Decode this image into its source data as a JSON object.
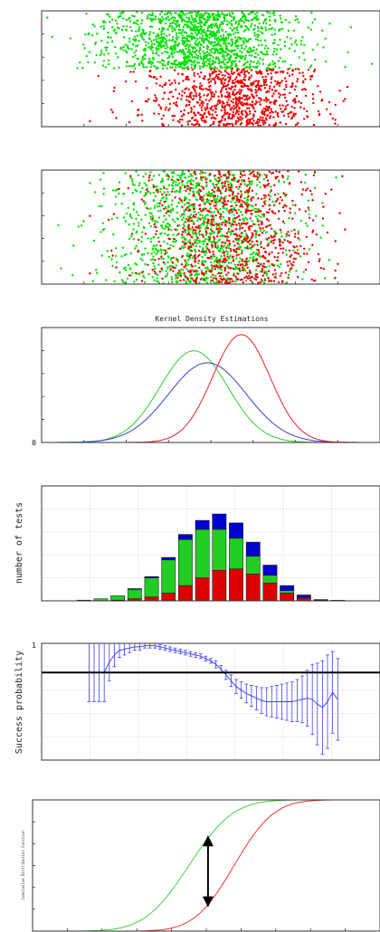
{
  "chart_data": [
    {
      "id": "scatter-separated",
      "type": "scatter",
      "xlim": [
        -5,
        5
      ],
      "ylim": [
        0,
        1
      ],
      "grid": false,
      "series": [
        {
          "color": "#00e000",
          "x_range": [
            -2.5,
            1.8
          ],
          "y_range": [
            0.5,
            1.0
          ],
          "count": 1400
        },
        {
          "color": "#ee0000",
          "x_range": [
            -1.2,
            2.6
          ],
          "y_range": [
            0.0,
            0.5
          ],
          "count": 900
        }
      ]
    },
    {
      "id": "scatter-mixed",
      "type": "scatter",
      "xlim": [
        -5,
        5
      ],
      "ylim": [
        0,
        1
      ],
      "grid": false,
      "series": [
        {
          "color": "#00e000",
          "x_range": [
            -2.5,
            1.8
          ],
          "y_range": [
            0.0,
            1.0
          ],
          "count": 1200
        },
        {
          "color": "#ee0000",
          "x_range": [
            -1.2,
            2.6
          ],
          "y_range": [
            0.0,
            1.0
          ],
          "count": 900
        }
      ]
    },
    {
      "id": "kde",
      "type": "line",
      "title": "Kernel Density Estimations",
      "xlim": [
        -5,
        5
      ],
      "ylim": [
        0,
        0.5
      ],
      "ytick_labels": [
        "0"
      ],
      "series": [
        {
          "color": "#33cc33",
          "mean": -0.5,
          "sd": 1.0
        },
        {
          "color": "#3344cc",
          "mean": -0.1,
          "sd": 1.15
        },
        {
          "color": "#ee2222",
          "mean": 0.9,
          "sd": 0.85
        }
      ]
    },
    {
      "id": "histogram",
      "type": "bar",
      "ylabel": "number of tests",
      "xlim": [
        -5,
        5
      ],
      "ylim": [
        0,
        450
      ],
      "grid": true,
      "x": [
        -3.75,
        -3.25,
        -2.75,
        -2.25,
        -1.75,
        -1.25,
        -0.75,
        -0.25,
        0.25,
        0.75,
        1.25,
        1.75,
        2.25,
        2.75,
        3.25,
        3.75
      ],
      "series": [
        {
          "name": "red",
          "color": "#dd0000",
          "values": [
            0,
            1,
            3,
            8,
            15,
            30,
            60,
            90,
            120,
            125,
            105,
            70,
            30,
            10,
            2,
            1
          ]
        },
        {
          "name": "green",
          "color": "#22cc22",
          "values": [
            3,
            7,
            17,
            37,
            75,
            130,
            180,
            190,
            160,
            120,
            70,
            30,
            10,
            3,
            1,
            0
          ]
        },
        {
          "name": "blue",
          "color": "#0000cc",
          "values": [
            0,
            0,
            0,
            3,
            5,
            10,
            20,
            35,
            60,
            60,
            55,
            40,
            20,
            10,
            2,
            1
          ]
        }
      ]
    },
    {
      "id": "success-probability",
      "type": "line",
      "ylabel": "Success probability",
      "xlim": [
        -5,
        5
      ],
      "ylim": [
        0,
        1
      ],
      "ytick_labels": [
        "1"
      ],
      "threshold": 0.75,
      "series": [
        {
          "color": "#4444ee",
          "x": [
            -3.6,
            -3.45,
            -3.3,
            -3.15,
            -3.0,
            -2.85,
            -2.7,
            -2.55,
            -2.4,
            -2.25,
            -2.1,
            -1.95,
            -1.8,
            -1.65,
            -1.5,
            -1.35,
            -1.2,
            -1.05,
            -0.9,
            -0.75,
            -0.6,
            -0.45,
            -0.3,
            -0.15,
            0.0,
            0.15,
            0.3,
            0.45,
            0.6,
            0.75,
            0.9,
            1.05,
            1.2,
            1.35,
            1.5,
            1.65,
            1.8,
            1.95,
            2.1,
            2.25,
            2.4,
            2.55,
            2.7,
            2.85,
            3.0,
            3.15,
            3.3,
            3.45,
            3.6,
            3.75
          ],
          "y": [
            0.75,
            0.75,
            0.75,
            0.75,
            0.84,
            0.9,
            0.94,
            0.95,
            0.96,
            0.97,
            0.97,
            0.98,
            0.98,
            0.98,
            0.97,
            0.96,
            0.95,
            0.94,
            0.93,
            0.92,
            0.91,
            0.9,
            0.89,
            0.87,
            0.85,
            0.82,
            0.78,
            0.73,
            0.68,
            0.63,
            0.6,
            0.57,
            0.55,
            0.53,
            0.51,
            0.5,
            0.5,
            0.5,
            0.5,
            0.5,
            0.5,
            0.51,
            0.52,
            0.53,
            0.52,
            0.48,
            0.45,
            0.5,
            0.58,
            0.52
          ],
          "err": [
            0.25,
            0.25,
            0.25,
            0.25,
            0.16,
            0.1,
            0.06,
            0.05,
            0.04,
            0.03,
            0.03,
            0.02,
            0.02,
            0.02,
            0.02,
            0.02,
            0.02,
            0.02,
            0.02,
            0.02,
            0.02,
            0.02,
            0.02,
            0.02,
            0.02,
            0.03,
            0.03,
            0.04,
            0.05,
            0.06,
            0.07,
            0.08,
            0.09,
            0.1,
            0.11,
            0.12,
            0.13,
            0.14,
            0.15,
            0.16,
            0.17,
            0.18,
            0.2,
            0.24,
            0.3,
            0.35,
            0.4,
            0.4,
            0.35,
            0.35
          ]
        }
      ]
    },
    {
      "id": "cdf",
      "type": "line",
      "ylabel": "Cumulative Distribution Function",
      "xlim": [
        -5,
        5
      ],
      "ylim": [
        0,
        1
      ],
      "arrow_x": 0.05,
      "series": [
        {
          "color": "#33cc33",
          "mean": -0.5,
          "sd": 1.0
        },
        {
          "color": "#ee2222",
          "mean": 0.8,
          "sd": 0.9
        }
      ]
    }
  ]
}
